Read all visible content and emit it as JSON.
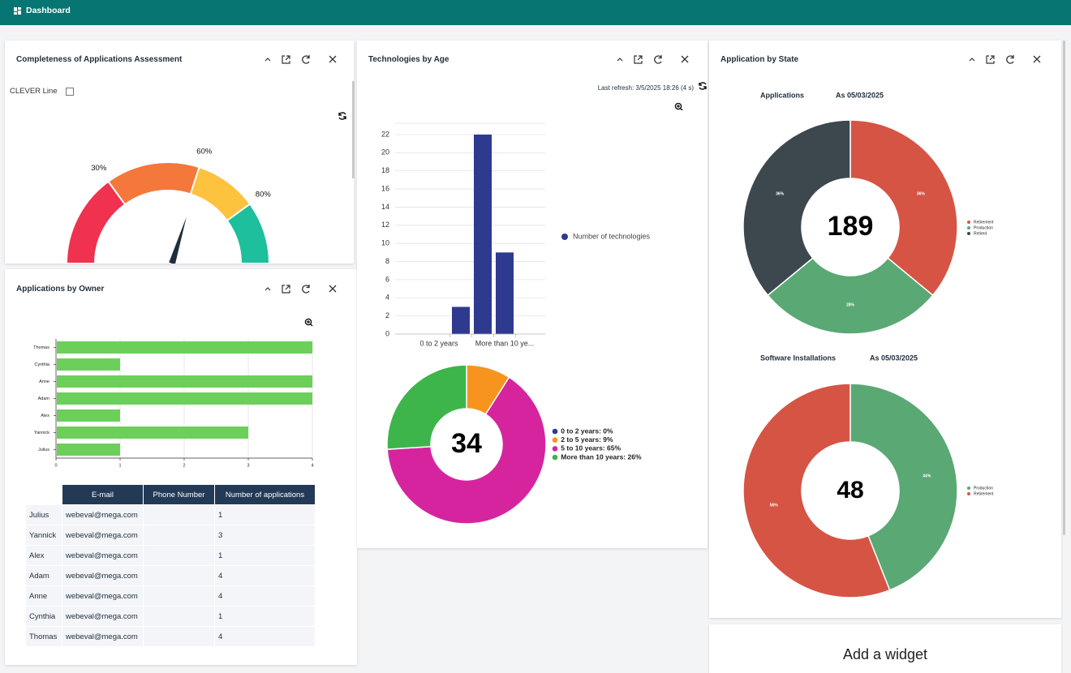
{
  "header": {
    "title": "Dashboard"
  },
  "widgets": {
    "completeness": {
      "title": "Completeness of Applications Assessment",
      "filter": "CLEVER Line"
    },
    "owner": {
      "title": "Applications by Owner",
      "table": {
        "columns": [
          "E-mail",
          "Phone Number",
          "Number of applications"
        ],
        "rows": [
          {
            "name": "Julius",
            "email": "webeval@mega.com",
            "applications": 1
          },
          {
            "name": "Yannick",
            "email": "webeval@mega.com",
            "applications": 3
          },
          {
            "name": "Alex",
            "email": "webeval@mega.com",
            "applications": 1
          },
          {
            "name": "Adam",
            "email": "webeval@mega.com",
            "applications": 4
          },
          {
            "name": "Anne",
            "email": "webeval@mega.com",
            "applications": 4
          },
          {
            "name": "Cynthia",
            "email": "webeval@mega.com",
            "applications": 1
          },
          {
            "name": "Thomas",
            "email": "webeval@mega.com",
            "applications": 4
          }
        ]
      }
    },
    "technologies": {
      "title": "Technologies by Age",
      "last_refresh": "Last refresh: 3/5/2025 18:26 (4 s)"
    },
    "state": {
      "title": "Application by State"
    },
    "add": {
      "label": "Add a widget"
    }
  },
  "chart_data": [
    {
      "type": "gauge",
      "ylim": [
        0,
        100
      ],
      "yticks": [
        {
          "value": 30,
          "label": "30%"
        },
        {
          "value": 60,
          "label": "60%"
        },
        {
          "value": 80,
          "label": "80%"
        }
      ],
      "colors": [
        "#f0314f",
        "#f4773c",
        "#fdc23e",
        "#1dbf9d"
      ],
      "value": 62,
      "needle_color": "#1f2d3d"
    },
    {
      "type": "hbar",
      "categories": [
        "Thomas",
        "Cynthia",
        "Anne",
        "Adam",
        "Alex",
        "Yannick",
        "Julius"
      ],
      "values": [
        4,
        1,
        4,
        4,
        1,
        3,
        1
      ],
      "color": "#6ccf5a",
      "xlim": [
        0,
        4
      ],
      "xticks": [
        0,
        1,
        2,
        3,
        4
      ],
      "grid": true
    },
    {
      "type": "bar",
      "categories": [
        "0 to 2 years",
        null,
        null,
        "More than 10 ye..."
      ],
      "series": [
        {
          "name": "Number of technologies",
          "color": "#2e3a8f",
          "values": [
            0,
            3,
            22,
            9
          ]
        }
      ],
      "ylim": [
        0,
        23.25
      ],
      "yticks": [
        0,
        2,
        4,
        6,
        8,
        10,
        12,
        14,
        16,
        18,
        20,
        22
      ],
      "grid": true
    },
    {
      "type": "donut",
      "center_label": "34",
      "categories": [
        "0 to 2 years: 0%",
        "2 to 5 years: 9%",
        "5 to 10 years: 65%",
        "More than 10 years: 26%"
      ],
      "values": [
        0,
        9,
        65,
        26
      ],
      "colors": [
        "#2e3a8f",
        "#f7941d",
        "#d6249f",
        "#3db54a"
      ]
    },
    {
      "type": "donut",
      "subtitle": "Applications",
      "date": "As 05/03/2025",
      "center_label": "189",
      "categories": [
        "Retirement",
        "Production",
        "Retired"
      ],
      "values": [
        36,
        28,
        36
      ],
      "value_labels": [
        "36%",
        "28%",
        "36%"
      ],
      "colors": [
        "#d65444",
        "#5aa874",
        "#3c474e"
      ]
    },
    {
      "type": "donut",
      "subtitle": "Software Installations",
      "date": "As 05/03/2025",
      "center_label": "48",
      "categories": [
        "Production",
        "Retirement"
      ],
      "values": [
        44,
        56
      ],
      "value_labels": [
        "44%",
        "56%"
      ],
      "colors": [
        "#5aa874",
        "#d65444"
      ]
    }
  ]
}
